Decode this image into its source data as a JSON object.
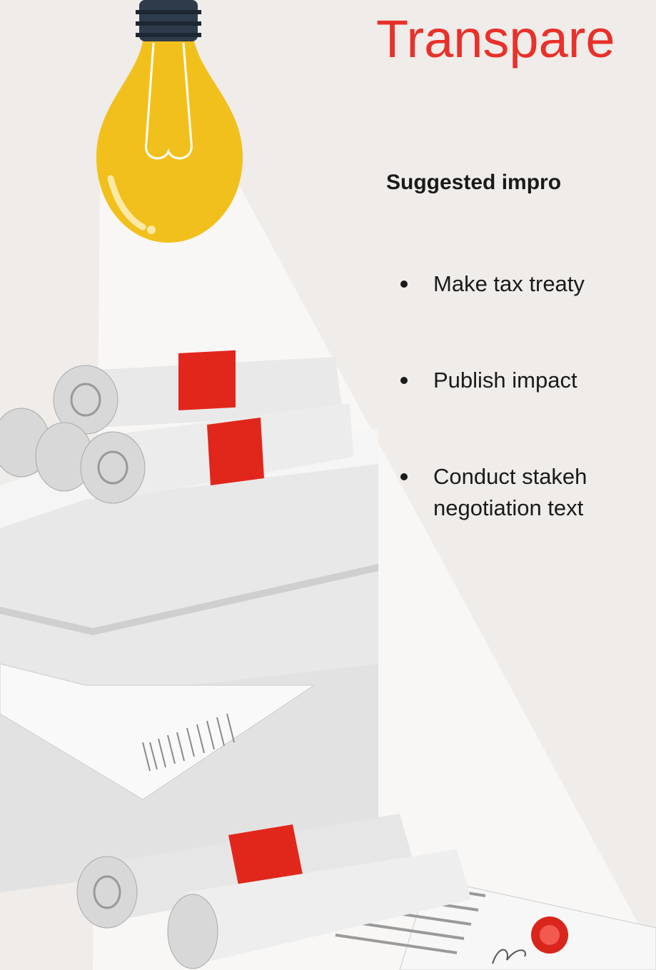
{
  "title": "Transpare",
  "subtitle": "Suggested impro",
  "bullets": [
    {
      "lines": [
        "Make tax treaty"
      ]
    },
    {
      "lines": [
        "Publish impact"
      ]
    },
    {
      "lines": [
        "Conduct stakeh",
        "negotiation text"
      ]
    }
  ]
}
